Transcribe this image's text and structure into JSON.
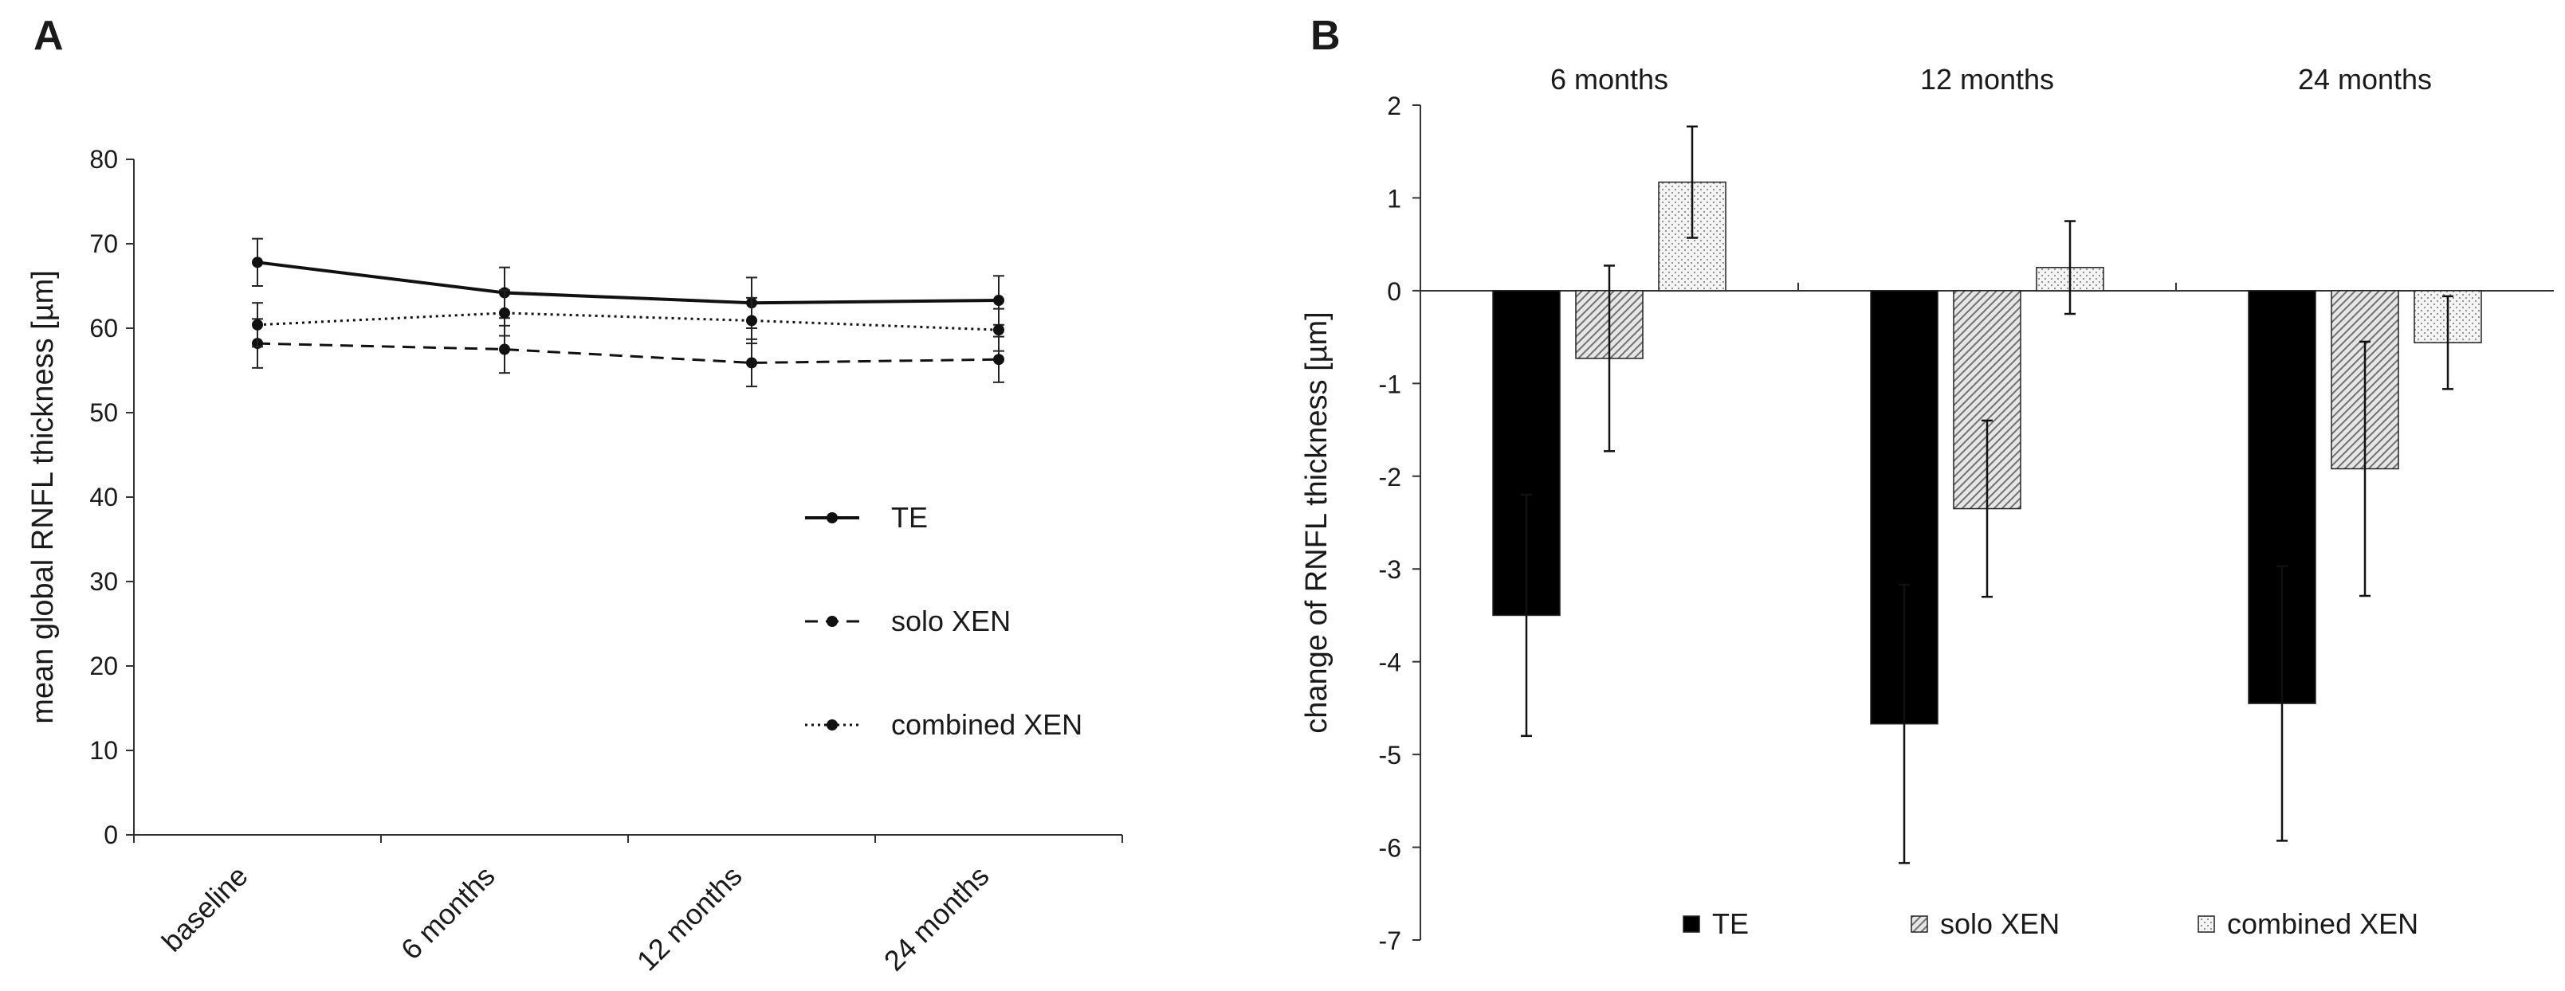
{
  "panels": {
    "a": {
      "label": "A"
    },
    "b": {
      "label": "B"
    }
  },
  "chart_data": [
    {
      "type": "line",
      "ylabel": "mean global RNFL thickness [µm]",
      "xlabel": "",
      "ylim": [
        0,
        80
      ],
      "yticks": [
        "0",
        "10",
        "20",
        "30",
        "40",
        "50",
        "60",
        "70",
        "80"
      ],
      "categories": [
        "baseline",
        "6 months",
        "12 months",
        "24 months"
      ],
      "legend_position": "center-right",
      "series": [
        {
          "name": "TE",
          "line_style": "solid",
          "values": [
            67.8,
            64.2,
            63.0,
            63.3
          ],
          "errors": [
            2.8,
            3.0,
            3.0,
            2.9
          ]
        },
        {
          "name": "solo XEN",
          "line_style": "dashed",
          "values": [
            58.2,
            57.5,
            55.9,
            56.3
          ],
          "errors": [
            2.9,
            2.8,
            2.8,
            2.7
          ]
        },
        {
          "name": "combined XEN",
          "line_style": "dotted",
          "values": [
            60.4,
            61.8,
            60.9,
            59.8
          ],
          "errors": [
            2.6,
            2.7,
            2.7,
            2.5
          ]
        }
      ]
    },
    {
      "type": "bar",
      "ylabel": "change of RNFL thickness [µm]",
      "xlabel": "",
      "ylim": [
        -7,
        2
      ],
      "yticks": [
        "-7",
        "-6",
        "-5",
        "-4",
        "-3",
        "-2",
        "-1",
        "0",
        "1",
        "2"
      ],
      "categories": [
        "6 months",
        "12 months",
        "24 months"
      ],
      "legend_position": "bottom",
      "series": [
        {
          "name": "TE",
          "fill": "solid black",
          "values": [
            -3.5,
            -4.67,
            -4.45
          ],
          "errors": [
            1.3,
            1.5,
            1.48
          ]
        },
        {
          "name": "solo XEN",
          "fill": "diagonal hatch",
          "values": [
            -0.73,
            -2.35,
            -1.92
          ],
          "errors": [
            1.0,
            0.95,
            1.37
          ]
        },
        {
          "name": "combined XEN",
          "fill": "light dotted",
          "values": [
            1.17,
            0.25,
            -0.56
          ],
          "errors": [
            0.6,
            0.5,
            0.5
          ]
        }
      ]
    }
  ]
}
